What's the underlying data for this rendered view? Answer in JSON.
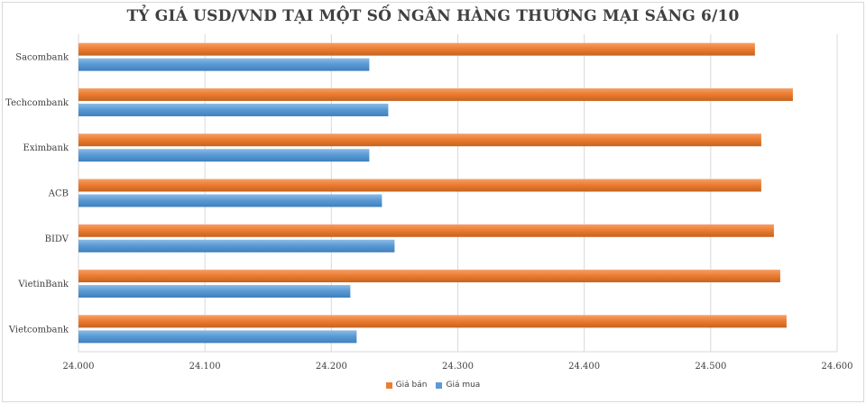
{
  "chart_data": {
    "type": "bar",
    "orientation": "horizontal",
    "title": "TỶ GIÁ USD/VND TẠI MỘT SỐ NGÂN HÀNG THƯƠNG MẠI SÁNG 6/10",
    "categories": [
      "Sacombank",
      "Techcombank",
      "Eximbank",
      "ACB",
      "BIDV",
      "VietinBank",
      "Vietcombank"
    ],
    "series": [
      {
        "name": "Giá bán",
        "color": "#ed7d31",
        "values": [
          24535,
          24565,
          24540,
          24540,
          24550,
          24555,
          24560
        ]
      },
      {
        "name": "Giá mua",
        "color": "#5b9bd5",
        "values": [
          24230,
          24245,
          24230,
          24240,
          24250,
          24215,
          24220
        ]
      }
    ],
    "xlim": [
      24000,
      24600
    ],
    "xticks": [
      24000,
      24100,
      24200,
      24300,
      24400,
      24500,
      24600
    ],
    "xtick_labels": [
      "24.000",
      "24.100",
      "24.200",
      "24.300",
      "24.400",
      "24.500",
      "24.600"
    ],
    "grid": true,
    "legend_position": "bottom",
    "style": "3d"
  }
}
